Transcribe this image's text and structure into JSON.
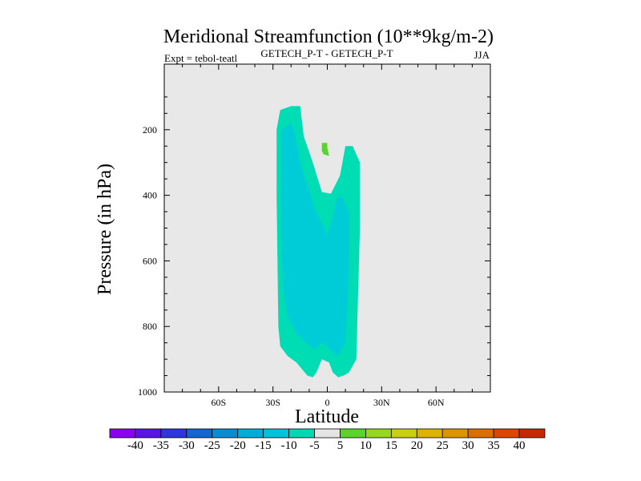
{
  "chart_data": {
    "type": "contour",
    "title": "Meridional Streamfunction (10**9kg/m-2)",
    "subtitle_left": "Expt = tebol-teatl",
    "subtitle_center": "GETECH_P-T - GETECH_P-T",
    "subtitle_right": "JJA",
    "xlabel": "Latitude",
    "ylabel": "Pressure (in hPa)",
    "xlim": [
      -90,
      90
    ],
    "ylim": [
      1000,
      0
    ],
    "x_ticks": [
      {
        "value": -60,
        "label": "60S"
      },
      {
        "value": -30,
        "label": "30S"
      },
      {
        "value": 0,
        "label": "0"
      },
      {
        "value": 30,
        "label": "30N"
      },
      {
        "value": 60,
        "label": "60N"
      }
    ],
    "y_ticks": [
      {
        "value": 200,
        "label": "200"
      },
      {
        "value": 400,
        "label": "400"
      },
      {
        "value": 600,
        "label": "600"
      },
      {
        "value": 800,
        "label": "800"
      },
      {
        "value": 1000,
        "label": "1000"
      }
    ],
    "background_color": "#e8e8e8",
    "contour_regions": [
      {
        "level": "-10 to -5",
        "color": "#00dcb4",
        "points": [
          [
            -26,
            140
          ],
          [
            -20,
            128
          ],
          [
            -15,
            128
          ],
          [
            -13,
            220
          ],
          [
            -8,
            300
          ],
          [
            -3,
            390
          ],
          [
            2,
            395
          ],
          [
            7,
            340
          ],
          [
            10,
            250
          ],
          [
            14,
            250
          ],
          [
            18,
            300
          ],
          [
            18,
            500
          ],
          [
            17,
            700
          ],
          [
            16,
            900
          ],
          [
            12,
            940
          ],
          [
            9,
            950
          ],
          [
            6,
            955
          ],
          [
            3,
            940
          ],
          [
            1,
            910
          ],
          [
            -3,
            900
          ],
          [
            -6,
            940
          ],
          [
            -8,
            955
          ],
          [
            -11,
            950
          ],
          [
            -17,
            910
          ],
          [
            -22,
            890
          ],
          [
            -26,
            860
          ],
          [
            -27,
            800
          ],
          [
            -27.5,
            600
          ],
          [
            -28,
            400
          ],
          [
            -28,
            200
          ]
        ]
      },
      {
        "level": "-15 to -10",
        "color": "#00ccd8",
        "points": [
          [
            -25,
            200
          ],
          [
            -20,
            180
          ],
          [
            -18,
            210
          ],
          [
            -15,
            300
          ],
          [
            -7,
            440
          ],
          [
            0,
            520
          ],
          [
            3,
            470
          ],
          [
            5,
            410
          ],
          [
            8,
            405
          ],
          [
            12,
            450
          ],
          [
            12,
            550
          ],
          [
            11.5,
            700
          ],
          [
            10,
            850
          ],
          [
            6,
            890
          ],
          [
            3,
            880
          ],
          [
            0,
            860
          ],
          [
            -3,
            850
          ],
          [
            -7,
            870
          ],
          [
            -12,
            850
          ],
          [
            -17,
            820
          ],
          [
            -22,
            770
          ],
          [
            -24,
            700
          ],
          [
            -25,
            600
          ],
          [
            -25.5,
            400
          ]
        ]
      },
      {
        "level": "5 to 10",
        "color": "#5ad42a",
        "points": [
          [
            -3,
            240
          ],
          [
            0,
            240
          ],
          [
            0,
            255
          ],
          [
            1,
            280
          ],
          [
            -2,
            275
          ],
          [
            -3,
            265
          ]
        ]
      }
    ],
    "colorbar": {
      "labels": [
        "-40",
        "-35",
        "-30",
        "-25",
        "-20",
        "-15",
        "-10",
        "-5",
        "5",
        "10",
        "15",
        "20",
        "25",
        "30",
        "35",
        "40"
      ],
      "colors": [
        "#8a00f0",
        "#5a14e6",
        "#2c36dc",
        "#1464d2",
        "#0a8cd2",
        "#00acd8",
        "#00c2d8",
        "#00d8b4",
        "#e4e4e4",
        "#5ad42a",
        "#96d81e",
        "#c8d010",
        "#dcb400",
        "#dc9400",
        "#dc6e00",
        "#dc4600",
        "#c82800"
      ]
    }
  }
}
